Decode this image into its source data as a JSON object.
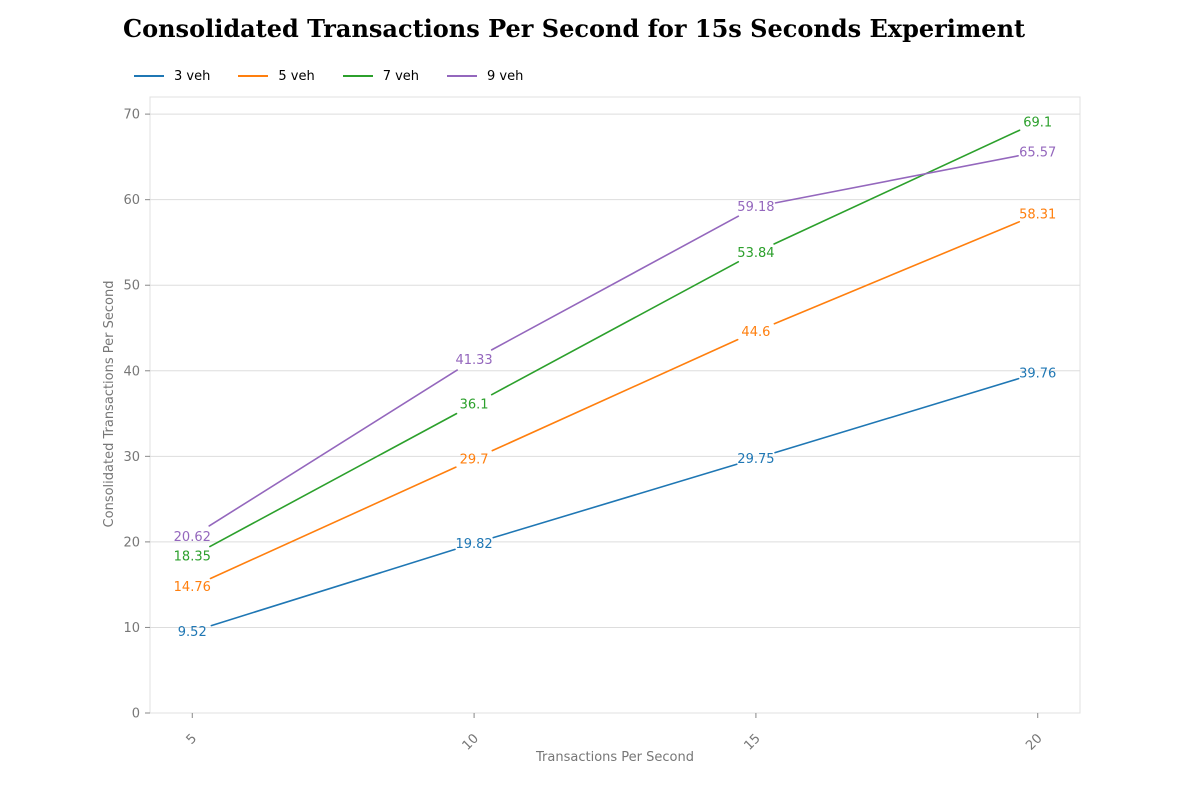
{
  "chart_data": {
    "type": "line",
    "title": "Consolidated Transactions Per Second for 15s Seconds Experiment",
    "xlabel": "Transactions Per Second",
    "ylabel": "Consolidated Transactions Per Second",
    "x": [
      5,
      10,
      15,
      20
    ],
    "x_ticks": [
      "5",
      "10",
      "15",
      "20"
    ],
    "y_ticks": [
      "0",
      "10",
      "20",
      "30",
      "40",
      "50",
      "60",
      "70"
    ],
    "ylim": [
      0,
      72
    ],
    "xlim": [
      4.25,
      20.75
    ],
    "grid": "horizontal",
    "legend_position": "top-left",
    "series": [
      {
        "name": "3 veh",
        "color": "#1f77b4",
        "values": [
          9.52,
          19.82,
          29.75,
          39.76
        ],
        "labels": [
          "9.52",
          "19.82",
          "29.75",
          "39.76"
        ]
      },
      {
        "name": "5 veh",
        "color": "#ff7f0e",
        "values": [
          14.76,
          29.7,
          44.6,
          58.31
        ],
        "labels": [
          "14.76",
          "29.7",
          "44.6",
          "58.31"
        ]
      },
      {
        "name": "7 veh",
        "color": "#2ca02c",
        "values": [
          18.35,
          36.1,
          53.84,
          69.1
        ],
        "labels": [
          "18.35",
          "36.1",
          "53.84",
          "69.1"
        ]
      },
      {
        "name": "9 veh",
        "color": "#9467bd",
        "values": [
          20.62,
          41.33,
          59.18,
          65.57
        ],
        "labels": [
          "20.62",
          "41.33",
          "59.18",
          "65.57"
        ]
      }
    ]
  }
}
